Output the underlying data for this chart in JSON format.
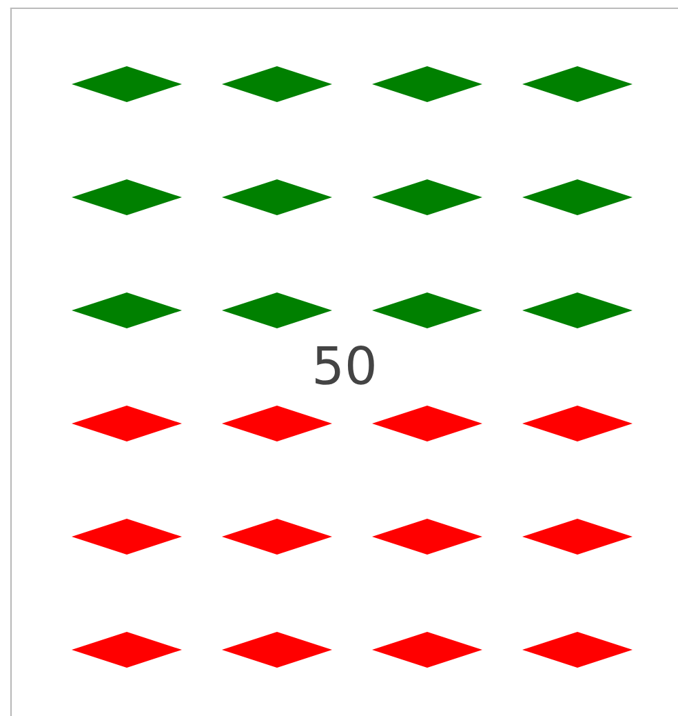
{
  "chart_data": {
    "type": "other",
    "categories": [
      null
    ],
    "values": [
      50
    ],
    "value_labels": [
      "50"
    ],
    "colors": [
      "#008000"
    ],
    "color": "#ff0000"
  }
}
